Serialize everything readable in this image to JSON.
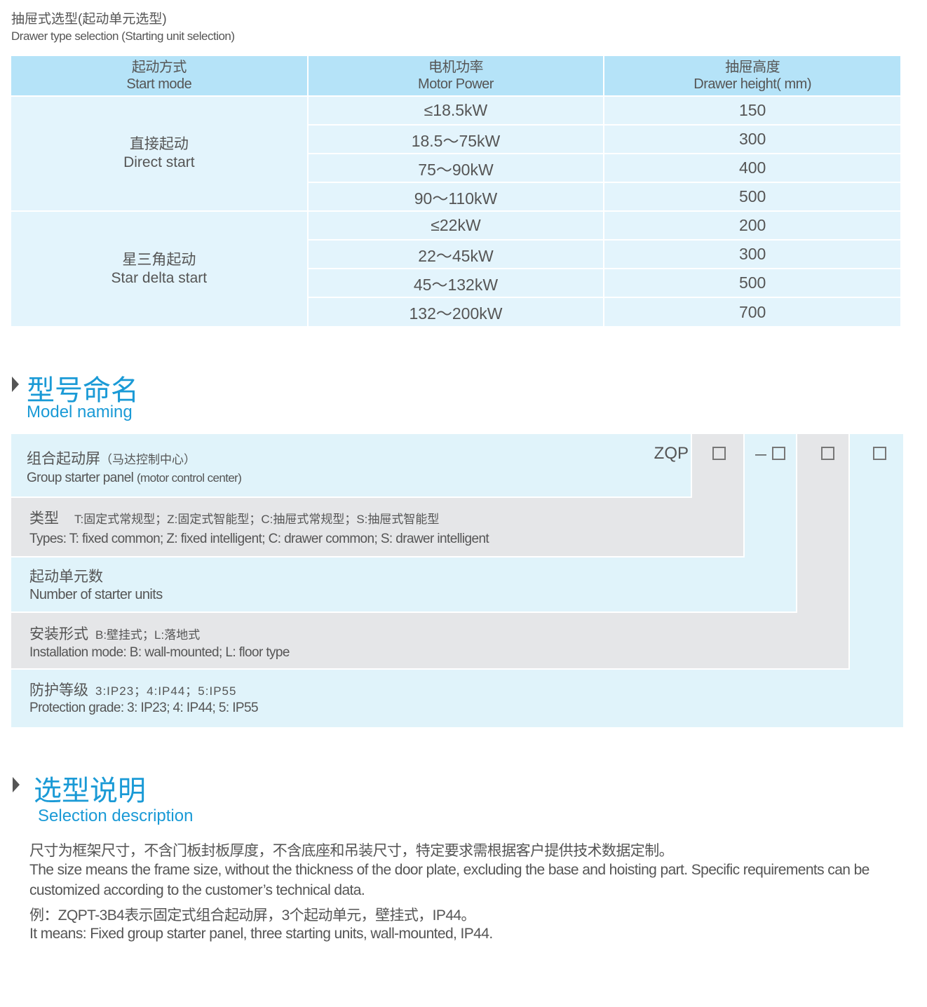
{
  "header": {
    "title_cn": "抽屉式选型(起动单元选型)",
    "title_en": "Drawer type selection (Starting unit selection)"
  },
  "table": {
    "columns": [
      {
        "cn": "起动方式",
        "en": "Start mode"
      },
      {
        "cn": "电机功率",
        "en": "Motor Power"
      },
      {
        "cn": "抽屉高度",
        "en": "Drawer height( mm)"
      }
    ],
    "groups": [
      {
        "cn": "直接起动",
        "en": "Direct start",
        "rows": [
          [
            "≤18.5kW",
            "150"
          ],
          [
            "18.5～75kW",
            "300"
          ],
          [
            "75～90kW",
            "400"
          ],
          [
            "90～110kW",
            "500"
          ]
        ]
      },
      {
        "cn": "星三角起动",
        "en": "Star delta start",
        "rows": [
          [
            "≤22kW",
            "200"
          ],
          [
            "22～45kW",
            "300"
          ],
          [
            "45～132kW",
            "500"
          ],
          [
            "132～200kW",
            "700"
          ]
        ]
      }
    ]
  },
  "model_naming": {
    "title_cn": "型号命名",
    "title_en": "Model naming",
    "code_prefix": "ZQP",
    "dash": "－",
    "rows": [
      {
        "cn": "组合起动屏",
        "cn_note": "（马达控制中心）",
        "en": "Group starter panel",
        "en_note": "(motor control center)"
      },
      {
        "cn": "类型",
        "cn_note": "T:固定式常规型；Z:固定式智能型；C:抽屉式常规型；S:抽屉式智能型",
        "en": "Types: T: fixed common; Z: fixed intelligent; C: drawer common; S: drawer intelligent"
      },
      {
        "cn": "起动单元数",
        "en": "Number  of  starter units"
      },
      {
        "cn": "安装形式",
        "cn_note": "B:壁挂式；L:落地式",
        "en": "Installation mode: B: wall-mounted; L: floor type"
      },
      {
        "cn": "防护等级",
        "cn_note": "3:IP23；4:IP44；5:IP55",
        "en": "Protection grade:  3: IP23; 4: IP44; 5: IP55"
      }
    ]
  },
  "selection": {
    "title_cn": "选型说明",
    "title_en": "Selection description",
    "lines": [
      "尺寸为框架尺寸，不含门板封板厚度，不含底座和吊装尺寸，特定要求需根据客户提供技术数据定制。",
      "The size means the frame size, without the thickness of the door plate, excluding the base and hoisting part. Specific requirements can be",
      "customized according to the customer’s technical data.",
      "例：ZQPT-3B4表示固定式组合起动屏，3个起动单元，壁挂式，IP44。",
      "It means: Fixed group starter panel, three starting units, wall-mounted, IP44."
    ]
  },
  "colors": {
    "accent": "#1a9ad6",
    "header_bg": "#b5e3f8",
    "cell_bg": "#e3f4fc",
    "light_band": "#e0f3fa",
    "gray_band": "#e5e6e8"
  }
}
